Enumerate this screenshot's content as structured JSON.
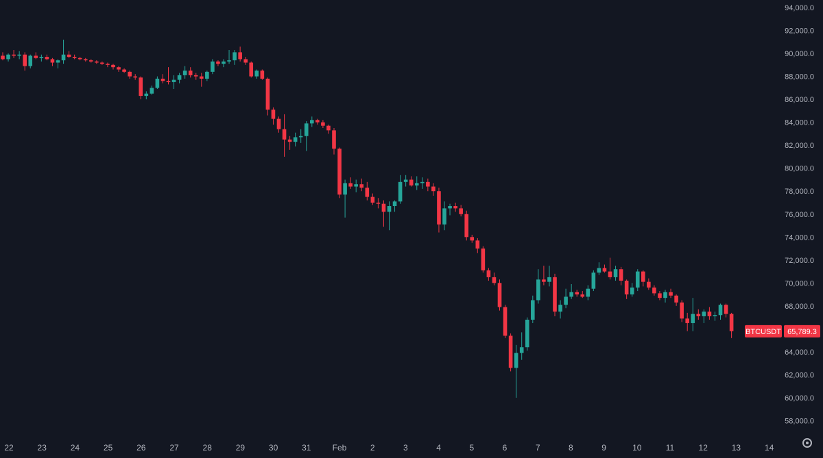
{
  "symbol": "BTCUSDT",
  "last_price_label": "65,789.3",
  "colors": {
    "background": "#131722",
    "up": "#26a69a",
    "down": "#f23645",
    "axis_text": "#b2b5be"
  },
  "icons": {
    "settings": "gear-icon"
  },
  "chart_data": {
    "type": "candlestick",
    "title": "",
    "ylim": [
      57000,
      94500
    ],
    "y_ticks": [
      "94,000.0",
      "92,000.0",
      "90,000.0",
      "88,000.0",
      "86,000.0",
      "84,000.0",
      "82,000.0",
      "80,000.0",
      "78,000.0",
      "76,000.0",
      "74,000.0",
      "72,000.0",
      "70,000.0",
      "68,000.0",
      "66,000.0",
      "64,000.0",
      "62,000.0",
      "60,000.0",
      "58,000.0"
    ],
    "x_ticks": [
      "22",
      "23",
      "24",
      "25",
      "26",
      "27",
      "28",
      "29",
      "30",
      "31",
      "Feb",
      "2",
      "3",
      "4",
      "5",
      "6",
      "7",
      "8",
      "9",
      "10",
      "11",
      "12",
      "13",
      "14"
    ],
    "last_price": 65789.3,
    "candles": [
      [
        89800,
        90100,
        89400,
        89500
      ],
      [
        89500,
        90000,
        89300,
        89900
      ],
      [
        89900,
        90300,
        89600,
        89800
      ],
      [
        89800,
        90200,
        89500,
        89900
      ],
      [
        89900,
        90100,
        88500,
        88900
      ],
      [
        88900,
        89900,
        88700,
        89800
      ],
      [
        89800,
        90100,
        89500,
        89600
      ],
      [
        89600,
        89900,
        89300,
        89700
      ],
      [
        89700,
        89900,
        89400,
        89500
      ],
      [
        89500,
        89600,
        88900,
        89200
      ],
      [
        89200,
        89500,
        88700,
        89400
      ],
      [
        89400,
        91200,
        89100,
        89900
      ],
      [
        89900,
        90200,
        89600,
        89700
      ],
      [
        89700,
        89900,
        89500,
        89600
      ],
      [
        89600,
        89700,
        89400,
        89500
      ],
      [
        89500,
        89600,
        89300,
        89400
      ],
      [
        89400,
        89500,
        89200,
        89300
      ],
      [
        89300,
        89400,
        89100,
        89200
      ],
      [
        89200,
        89300,
        89000,
        89100
      ],
      [
        89100,
        89200,
        88800,
        89000
      ],
      [
        89000,
        89100,
        88600,
        88800
      ],
      [
        88800,
        88900,
        88400,
        88600
      ],
      [
        88600,
        88700,
        88300,
        88400
      ],
      [
        88400,
        88500,
        87800,
        88000
      ],
      [
        88000,
        88200,
        87700,
        87900
      ],
      [
        87900,
        88000,
        86000,
        86300
      ],
      [
        86300,
        86700,
        86000,
        86500
      ],
      [
        86500,
        87200,
        86400,
        87000
      ],
      [
        87000,
        88000,
        86900,
        87800
      ],
      [
        87800,
        88200,
        87400,
        87600
      ],
      [
        87600,
        88800,
        87300,
        87500
      ],
      [
        87500,
        88100,
        86900,
        87700
      ],
      [
        87700,
        88300,
        87400,
        88100
      ],
      [
        88100,
        88900,
        87800,
        88500
      ],
      [
        88500,
        88800,
        87900,
        88100
      ],
      [
        88100,
        88300,
        87700,
        88000
      ],
      [
        88000,
        88300,
        87100,
        87800
      ],
      [
        87800,
        88500,
        87600,
        88400
      ],
      [
        88400,
        89500,
        88200,
        89300
      ],
      [
        89300,
        89400,
        88900,
        89100
      ],
      [
        89100,
        89500,
        88800,
        89300
      ],
      [
        89300,
        90300,
        89100,
        89400
      ],
      [
        89400,
        90300,
        89000,
        90100
      ],
      [
        90100,
        90600,
        89300,
        89500
      ],
      [
        89500,
        89700,
        89000,
        89200
      ],
      [
        89200,
        89300,
        87900,
        88000
      ],
      [
        88000,
        88600,
        87800,
        88500
      ],
      [
        88500,
        88600,
        87700,
        87800
      ],
      [
        87800,
        87900,
        84600,
        85100
      ],
      [
        85100,
        85300,
        83800,
        84300
      ],
      [
        84300,
        84500,
        83100,
        83400
      ],
      [
        83400,
        84700,
        81000,
        82500
      ],
      [
        82500,
        82800,
        81600,
        82300
      ],
      [
        82300,
        83100,
        81900,
        82700
      ],
      [
        82700,
        83400,
        82200,
        82800
      ],
      [
        82800,
        84100,
        81500,
        83900
      ],
      [
        83900,
        84500,
        83600,
        84200
      ],
      [
        84200,
        84300,
        83800,
        84000
      ],
      [
        84000,
        84200,
        83500,
        83700
      ],
      [
        83700,
        83800,
        83000,
        83300
      ],
      [
        83300,
        83500,
        81200,
        81700
      ],
      [
        81700,
        81800,
        77400,
        77700
      ],
      [
        77700,
        79000,
        75700,
        78700
      ],
      [
        78700,
        79200,
        78200,
        78400
      ],
      [
        78400,
        79000,
        77900,
        78600
      ],
      [
        78600,
        79100,
        78000,
        78300
      ],
      [
        78300,
        78800,
        77200,
        77500
      ],
      [
        77500,
        77800,
        76800,
        77000
      ],
      [
        77000,
        77400,
        76500,
        76900
      ],
      [
        76900,
        77200,
        74900,
        76200
      ],
      [
        76200,
        77100,
        74600,
        76700
      ],
      [
        76700,
        77200,
        76200,
        77100
      ],
      [
        77100,
        79400,
        76900,
        78800
      ],
      [
        78800,
        79400,
        78400,
        79000
      ],
      [
        79000,
        79300,
        78400,
        78500
      ],
      [
        78500,
        79300,
        78100,
        78700
      ],
      [
        78700,
        79200,
        78200,
        78800
      ],
      [
        78800,
        79100,
        78000,
        78400
      ],
      [
        78400,
        78700,
        77600,
        78000
      ],
      [
        78000,
        78300,
        74400,
        75100
      ],
      [
        75100,
        77100,
        74600,
        76500
      ],
      [
        76500,
        76900,
        75900,
        76700
      ],
      [
        76700,
        77000,
        76200,
        76500
      ],
      [
        76500,
        76800,
        75800,
        76000
      ],
      [
        76000,
        76300,
        73700,
        74000
      ],
      [
        74000,
        74200,
        73500,
        73700
      ],
      [
        73700,
        73900,
        72600,
        73000
      ],
      [
        73000,
        73200,
        70900,
        71100
      ],
      [
        71100,
        71300,
        70200,
        70500
      ],
      [
        70500,
        70900,
        69800,
        70000
      ],
      [
        70000,
        70300,
        67600,
        67900
      ],
      [
        67900,
        68100,
        65200,
        65400
      ],
      [
        65400,
        65600,
        62300,
        62600
      ],
      [
        62600,
        64600,
        60000,
        63900
      ],
      [
        63900,
        65700,
        63300,
        64400
      ],
      [
        64400,
        67000,
        64100,
        66800
      ],
      [
        66800,
        68900,
        66500,
        68500
      ],
      [
        68500,
        71200,
        68200,
        70300
      ],
      [
        70300,
        71500,
        69800,
        70100
      ],
      [
        70100,
        71500,
        69700,
        70500
      ],
      [
        70500,
        70800,
        67100,
        67500
      ],
      [
        67500,
        68500,
        66900,
        68100
      ],
      [
        68100,
        69500,
        67800,
        68800
      ],
      [
        68800,
        69900,
        68600,
        69200
      ],
      [
        69200,
        69400,
        68800,
        69000
      ],
      [
        69000,
        69300,
        68700,
        68800
      ],
      [
        68800,
        69800,
        68500,
        69500
      ],
      [
        69500,
        71100,
        69300,
        70900
      ],
      [
        70900,
        71800,
        70700,
        71300
      ],
      [
        71300,
        71600,
        70900,
        71000
      ],
      [
        71000,
        72200,
        70300,
        70500
      ],
      [
        70500,
        71500,
        70200,
        71200
      ],
      [
        71200,
        71400,
        69800,
        70200
      ],
      [
        70200,
        70300,
        68600,
        69000
      ],
      [
        69000,
        70000,
        68800,
        69600
      ],
      [
        69600,
        71200,
        69300,
        71000
      ],
      [
        71000,
        71100,
        69700,
        70100
      ],
      [
        70100,
        70400,
        69400,
        69600
      ],
      [
        69600,
        69800,
        68900,
        69100
      ],
      [
        69100,
        69300,
        68500,
        68700
      ],
      [
        68700,
        69400,
        68300,
        69200
      ],
      [
        69200,
        69500,
        68700,
        68900
      ],
      [
        68900,
        69000,
        68000,
        68300
      ],
      [
        68300,
        68500,
        66600,
        66900
      ],
      [
        66900,
        67400,
        65800,
        66500
      ],
      [
        66500,
        68700,
        65800,
        67300
      ],
      [
        67300,
        67700,
        66800,
        67100
      ],
      [
        67100,
        67700,
        66500,
        67500
      ],
      [
        67500,
        67900,
        66800,
        67100
      ],
      [
        67100,
        67500,
        66700,
        67200
      ],
      [
        67200,
        68200,
        66800,
        68100
      ],
      [
        68100,
        68200,
        67000,
        67300
      ],
      [
        67300,
        67400,
        65200,
        65800
      ]
    ]
  }
}
